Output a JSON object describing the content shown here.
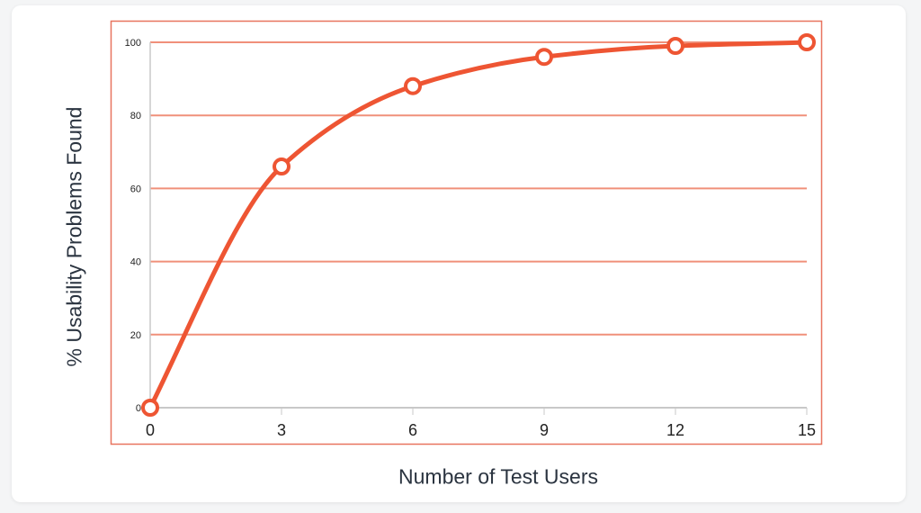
{
  "chart_data": {
    "type": "line",
    "title": "",
    "xlabel": "Number of Test Users",
    "ylabel": "% Usability Problems Found",
    "x": [
      0,
      3,
      6,
      9,
      12,
      15
    ],
    "series": [
      {
        "values": [
          0,
          66,
          88,
          96,
          99,
          100
        ]
      }
    ],
    "xlim": [
      0,
      15
    ],
    "ylim": [
      0,
      100
    ],
    "xticks": [
      "0",
      "3",
      "6",
      "9",
      "12",
      "15"
    ],
    "yticks": [
      "0",
      "20",
      "40",
      "60",
      "80",
      "100"
    ],
    "grid": "horizontal",
    "smooth": true,
    "markers": "hollow-circle",
    "colors": {
      "line": "#ee5533",
      "grid": "#f0907a",
      "frame": "#e8745f",
      "axis": "#c8c8c8"
    }
  }
}
